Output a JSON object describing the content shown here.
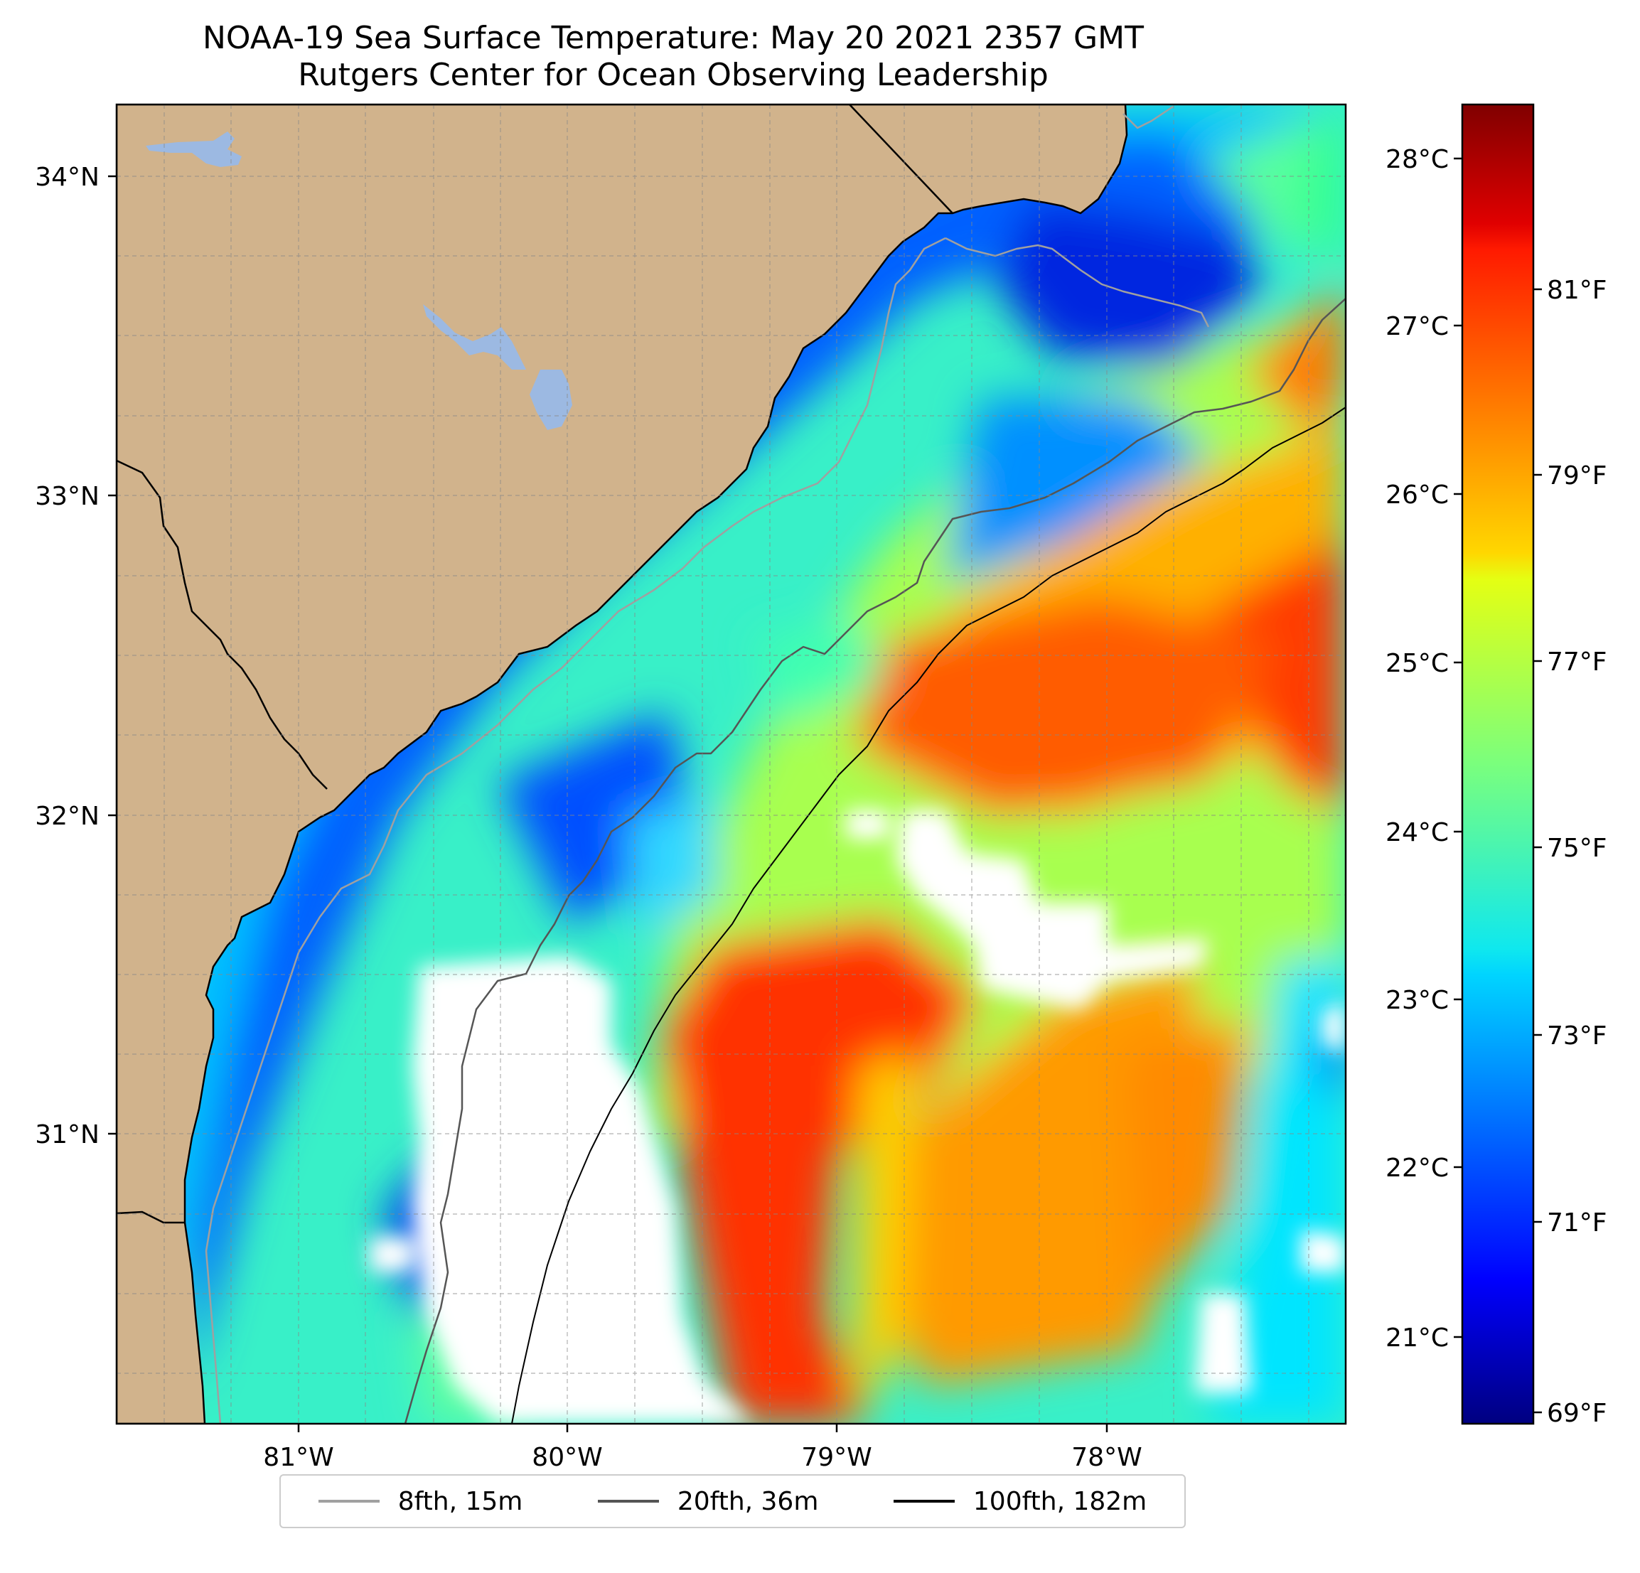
{
  "title": "NOAA-19 Sea Surface Temperature: May 20 2021 2357 GMT",
  "subtitle": "Rutgers Center for Ocean Observing Leadership",
  "map": {
    "lat_ticks": [
      "34°N",
      "33°N",
      "32°N",
      "31°N"
    ],
    "lon_ticks": [
      "81°W",
      "80°W",
      "79°W",
      "78°W"
    ],
    "extent": {
      "lon_min": -81.68,
      "lon_max": -77.15,
      "lat_min": 30.25,
      "lat_max": 34.22
    },
    "colors": {
      "land": "#d1b38c",
      "lake": "#9cb9e2",
      "no_data": "#ffffff"
    }
  },
  "colorbar": {
    "celsius_ticks": [
      "28°C",
      "27°C",
      "26°C",
      "25°C",
      "24°C",
      "23°C",
      "22°C",
      "21°C"
    ],
    "fahrenheit_ticks": [
      "81°F",
      "79°F",
      "77°F",
      "75°F",
      "73°F",
      "71°F",
      "69°F"
    ],
    "colormap": "jet"
  },
  "legend": {
    "items": [
      {
        "label": "8fth, 15m",
        "color": "#a0a0a0"
      },
      {
        "label": "20fth, 36m",
        "color": "#555555"
      },
      {
        "label": "100fth, 182m",
        "color": "#000000"
      }
    ]
  }
}
